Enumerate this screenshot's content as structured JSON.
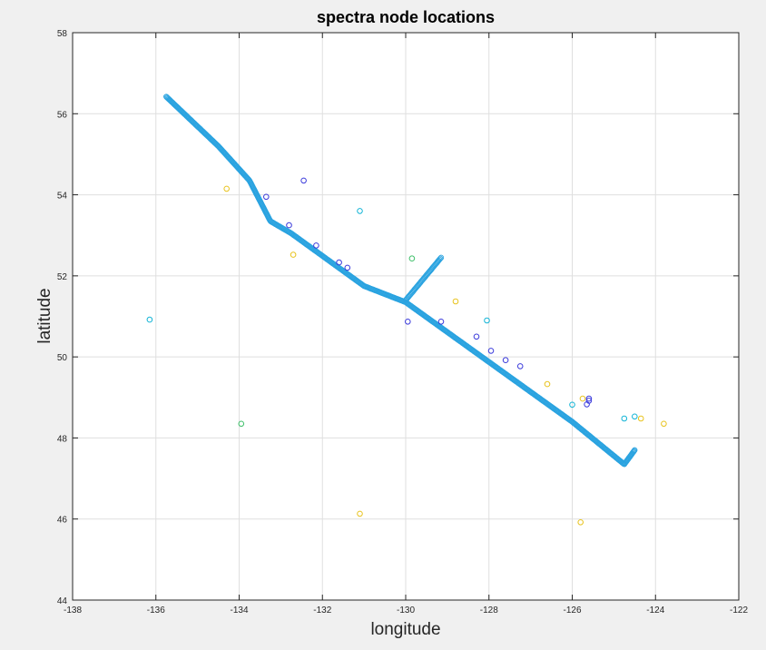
{
  "chart_data": {
    "type": "scatter",
    "title": "spectra node locations",
    "xlabel": "longitude",
    "ylabel": "latitude",
    "xlim": [
      -138,
      -122
    ],
    "ylim": [
      44,
      58
    ],
    "xticks": [
      -138,
      -136,
      -134,
      -132,
      -130,
      -128,
      -126,
      -124,
      -122
    ],
    "yticks": [
      44,
      46,
      48,
      50,
      52,
      54,
      56,
      58
    ],
    "grid": true,
    "marker": "open-circle",
    "colors": {
      "background": "#f0f0f0",
      "axes": "#ffffff",
      "grid": "#dfdfdf",
      "line_nodes": "#2aa3e0",
      "blue": "#3a3adb",
      "cyan": "#12b4d6",
      "green": "#3fbf6a",
      "yellow": "#e8c31e"
    },
    "line_polyline": [
      [
        -135.75,
        56.42
      ],
      [
        -134.5,
        55.2
      ],
      [
        -133.75,
        54.35
      ],
      [
        -133.25,
        53.35
      ],
      [
        -132.75,
        53.05
      ],
      [
        -131.0,
        51.75
      ],
      [
        -130.5,
        51.55
      ],
      [
        -130.0,
        51.35
      ],
      [
        -126.0,
        48.4
      ],
      [
        -124.75,
        47.35
      ],
      [
        -124.5,
        47.7
      ]
    ],
    "line_branch": [
      [
        -130.0,
        51.4
      ],
      [
        -129.15,
        52.45
      ]
    ],
    "line_node_count": 600,
    "branch_node_count": 45,
    "points": [
      {
        "x": -136.15,
        "y": 50.92,
        "color": "cyan"
      },
      {
        "x": -134.3,
        "y": 54.15,
        "color": "yellow"
      },
      {
        "x": -133.35,
        "y": 53.95,
        "color": "blue"
      },
      {
        "x": -132.45,
        "y": 54.35,
        "color": "blue"
      },
      {
        "x": -132.8,
        "y": 53.25,
        "color": "blue"
      },
      {
        "x": -132.7,
        "y": 52.52,
        "color": "yellow"
      },
      {
        "x": -132.15,
        "y": 52.75,
        "color": "blue"
      },
      {
        "x": -131.6,
        "y": 52.33,
        "color": "blue"
      },
      {
        "x": -131.4,
        "y": 52.2,
        "color": "blue"
      },
      {
        "x": -131.1,
        "y": 53.6,
        "color": "cyan"
      },
      {
        "x": -129.85,
        "y": 52.43,
        "color": "green"
      },
      {
        "x": -129.95,
        "y": 50.87,
        "color": "blue"
      },
      {
        "x": -129.15,
        "y": 50.87,
        "color": "blue"
      },
      {
        "x": -128.8,
        "y": 51.37,
        "color": "yellow"
      },
      {
        "x": -128.05,
        "y": 50.9,
        "color": "cyan"
      },
      {
        "x": -128.3,
        "y": 50.5,
        "color": "blue"
      },
      {
        "x": -127.95,
        "y": 50.15,
        "color": "blue"
      },
      {
        "x": -127.6,
        "y": 49.92,
        "color": "blue"
      },
      {
        "x": -127.25,
        "y": 49.77,
        "color": "blue"
      },
      {
        "x": -126.6,
        "y": 49.33,
        "color": "yellow"
      },
      {
        "x": -126.0,
        "y": 48.82,
        "color": "cyan"
      },
      {
        "x": -125.75,
        "y": 48.97,
        "color": "yellow"
      },
      {
        "x": -125.65,
        "y": 48.83,
        "color": "blue"
      },
      {
        "x": -125.6,
        "y": 48.92,
        "color": "blue"
      },
      {
        "x": -125.6,
        "y": 48.97,
        "color": "blue"
      },
      {
        "x": -124.75,
        "y": 48.48,
        "color": "cyan"
      },
      {
        "x": -124.5,
        "y": 48.53,
        "color": "cyan"
      },
      {
        "x": -124.35,
        "y": 48.48,
        "color": "yellow"
      },
      {
        "x": -123.8,
        "y": 48.35,
        "color": "yellow"
      },
      {
        "x": -133.95,
        "y": 48.35,
        "color": "green"
      },
      {
        "x": -131.1,
        "y": 46.13,
        "color": "yellow"
      },
      {
        "x": -125.8,
        "y": 45.92,
        "color": "yellow"
      }
    ]
  }
}
